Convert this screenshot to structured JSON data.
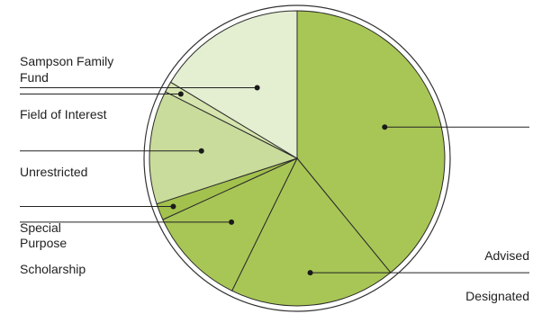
{
  "chart_data": {
    "type": "pie",
    "title": "",
    "slices": [
      {
        "name": "Advised",
        "value": 43,
        "color": "#a8c656"
      },
      {
        "name": "Designated",
        "value": 20,
        "color": "#a8c656"
      },
      {
        "name": "Scholarship",
        "value": 12,
        "color": "#a8c656"
      },
      {
        "name": "Special Purpose",
        "value": 2,
        "color": "#a3c14d"
      },
      {
        "name": "Unrestricted",
        "value": 13.7,
        "color": "#c9dc9b"
      },
      {
        "name": "Field of Interest",
        "value": 1.3,
        "color": "#d6e5ae"
      },
      {
        "name": "Sampson Family Fund",
        "value": 18,
        "color": "#e4eed1"
      }
    ],
    "legend": "callout labels with leader lines"
  },
  "labels": {
    "sampson_line1": "Sampson Family",
    "sampson_line2": "Fund",
    "field_of_interest": "Field of Interest",
    "unrestricted": "Unrestricted",
    "special_line1": "Special",
    "special_line2": "Purpose",
    "scholarship": "Scholarship",
    "advised": "Advised",
    "designated": "Designated"
  }
}
